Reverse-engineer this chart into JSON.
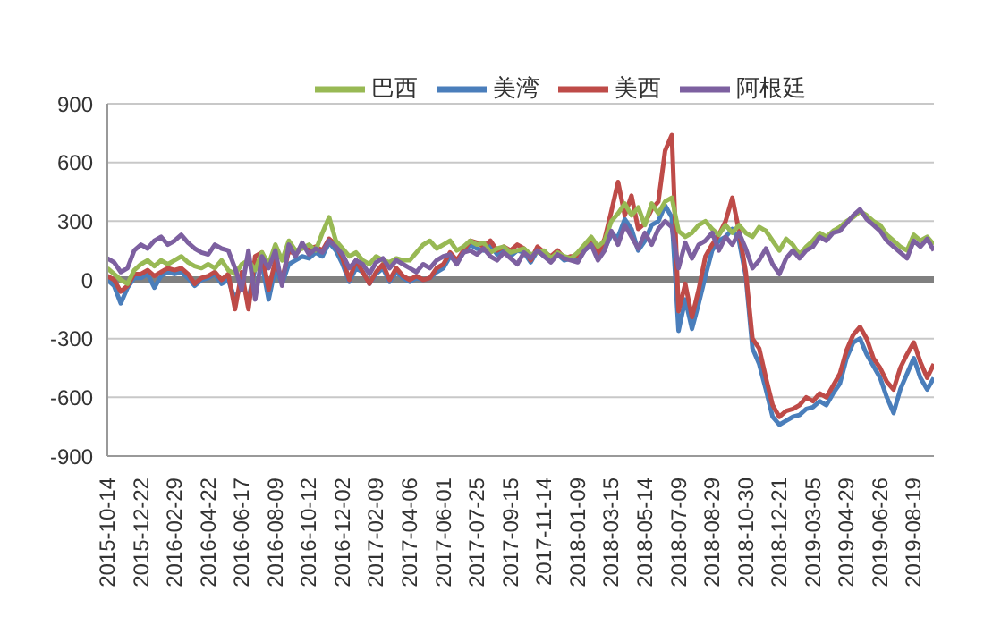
{
  "chart_data": {
    "type": "line",
    "categories": [
      "2015-10-14",
      null,
      null,
      null,
      null,
      "2015-12-22",
      null,
      null,
      null,
      null,
      "2016-02-29",
      null,
      null,
      null,
      null,
      "2016-04-22",
      null,
      null,
      null,
      null,
      "2016-06-17",
      null,
      null,
      null,
      null,
      "2016-08-09",
      null,
      null,
      null,
      null,
      "2016-10-12",
      null,
      null,
      null,
      null,
      "2016-12-02",
      null,
      null,
      null,
      null,
      "2017-02-09",
      null,
      null,
      null,
      null,
      "2017-04-06",
      null,
      null,
      null,
      null,
      "2017-06-01",
      null,
      null,
      null,
      null,
      "2017-07-25",
      null,
      null,
      null,
      null,
      "2017-09-15",
      null,
      null,
      null,
      null,
      "2017-11-14",
      null,
      null,
      null,
      null,
      "2018-01-09",
      null,
      null,
      null,
      null,
      "2018-03-15",
      null,
      null,
      null,
      null,
      "2018-05-14",
      null,
      null,
      null,
      null,
      "2018-07-09",
      null,
      null,
      null,
      null,
      "2018-08-29",
      null,
      null,
      null,
      null,
      "2018-10-30",
      null,
      null,
      null,
      null,
      "2018-12-21",
      null,
      null,
      null,
      null,
      "2019-03-05",
      null,
      null,
      null,
      null,
      "2019-04-29",
      null,
      null,
      null,
      null,
      "2019-06-26",
      null,
      null,
      null,
      null,
      "2019-08-19",
      null,
      null,
      null
    ],
    "series": [
      {
        "name": "美湾",
        "color": "#4a7ebb",
        "values": [
          0,
          -30,
          -120,
          -40,
          10,
          10,
          30,
          -40,
          20,
          40,
          30,
          40,
          10,
          -30,
          0,
          10,
          30,
          -20,
          0,
          -100,
          -20,
          -100,
          60,
          80,
          -100,
          60,
          -20,
          80,
          100,
          120,
          110,
          140,
          120,
          190,
          150,
          80,
          -10,
          60,
          40,
          -20,
          30,
          60,
          -10,
          40,
          10,
          -10,
          10,
          0,
          10,
          40,
          60,
          120,
          90,
          140,
          180,
          160,
          150,
          180,
          130,
          150,
          120,
          150,
          140,
          90,
          150,
          120,
          100,
          130,
          100,
          110,
          100,
          150,
          180,
          120,
          160,
          230,
          220,
          310,
          260,
          150,
          200,
          280,
          300,
          380,
          320,
          -260,
          -100,
          -250,
          -120,
          20,
          150,
          200,
          220,
          260,
          200,
          20,
          -350,
          -430,
          -560,
          -700,
          -740,
          -720,
          -700,
          -690,
          -660,
          -650,
          -620,
          -640,
          -580,
          -530,
          -400,
          -320,
          -300,
          -380,
          -440,
          -500,
          -600,
          -680,
          -560,
          -480,
          -400,
          -500,
          -560,
          -500
        ]
      },
      {
        "name": "美西",
        "color": "#be4b48",
        "values": [
          20,
          0,
          -60,
          -30,
          30,
          30,
          50,
          20,
          40,
          60,
          50,
          60,
          30,
          -20,
          10,
          20,
          40,
          0,
          30,
          -150,
          40,
          -150,
          120,
          140,
          -50,
          100,
          0,
          150,
          130,
          170,
          160,
          170,
          150,
          210,
          180,
          110,
          0,
          100,
          40,
          -20,
          40,
          80,
          0,
          60,
          20,
          0,
          20,
          0,
          10,
          60,
          80,
          140,
          100,
          150,
          200,
          190,
          170,
          200,
          150,
          170,
          150,
          180,
          160,
          100,
          170,
          140,
          120,
          150,
          110,
          120,
          120,
          170,
          200,
          130,
          210,
          350,
          500,
          330,
          430,
          260,
          290,
          360,
          400,
          660,
          740,
          -160,
          -20,
          -190,
          -50,
          120,
          180,
          230,
          300,
          420,
          250,
          40,
          -300,
          -350,
          -500,
          -640,
          -700,
          -670,
          -660,
          -640,
          -600,
          -620,
          -580,
          -600,
          -540,
          -480,
          -360,
          -280,
          -240,
          -300,
          -400,
          -450,
          -520,
          -560,
          -450,
          -380,
          -320,
          -420,
          -500,
          -430
        ]
      },
      {
        "name": "巴西",
        "color": "#98b954",
        "values": [
          60,
          30,
          0,
          -20,
          50,
          80,
          100,
          70,
          100,
          80,
          100,
          120,
          90,
          70,
          60,
          80,
          60,
          100,
          50,
          30,
          80,
          100,
          50,
          140,
          80,
          180,
          100,
          200,
          150,
          160,
          180,
          150,
          240,
          320,
          200,
          160,
          120,
          140,
          100,
          80,
          120,
          100,
          90,
          110,
          100,
          100,
          140,
          180,
          200,
          160,
          180,
          200,
          150,
          170,
          200,
          180,
          190,
          140,
          160,
          170,
          140,
          150,
          160,
          130,
          140,
          150,
          110,
          140,
          120,
          110,
          140,
          180,
          220,
          170,
          200,
          300,
          340,
          390,
          330,
          370,
          280,
          390,
          340,
          400,
          420,
          250,
          220,
          240,
          280,
          300,
          260,
          230,
          280,
          240,
          280,
          240,
          220,
          270,
          250,
          200,
          150,
          210,
          180,
          130,
          170,
          200,
          240,
          220,
          250,
          270,
          300,
          320,
          350,
          330,
          300,
          280,
          230,
          200,
          170,
          150,
          230,
          200,
          220,
          180
        ]
      },
      {
        "name": "阿根廷",
        "color": "#7d60a0",
        "values": [
          110,
          90,
          40,
          60,
          150,
          180,
          160,
          200,
          220,
          180,
          200,
          230,
          190,
          160,
          140,
          130,
          180,
          160,
          150,
          60,
          -50,
          150,
          -100,
          120,
          60,
          150,
          -30,
          180,
          120,
          190,
          130,
          160,
          140,
          200,
          170,
          130,
          60,
          100,
          80,
          30,
          90,
          110,
          60,
          100,
          80,
          60,
          40,
          80,
          60,
          100,
          120,
          130,
          80,
          140,
          150,
          130,
          160,
          120,
          100,
          140,
          110,
          80,
          140,
          110,
          150,
          120,
          90,
          130,
          110,
          100,
          90,
          150,
          180,
          100,
          150,
          250,
          180,
          280,
          220,
          160,
          240,
          180,
          260,
          300,
          270,
          60,
          190,
          110,
          180,
          200,
          240,
          150,
          220,
          180,
          240,
          160,
          60,
          100,
          160,
          80,
          30,
          110,
          150,
          110,
          150,
          170,
          220,
          200,
          240,
          250,
          290,
          330,
          360,
          310,
          280,
          250,
          200,
          170,
          140,
          110,
          200,
          170,
          210,
          150
        ]
      }
    ],
    "ylim": [
      -900,
      900
    ],
    "yticks": [
      -900,
      -600,
      -300,
      0,
      300,
      600,
      900
    ],
    "grid": "y",
    "legend": "top",
    "marker": "none",
    "line_style": "solid",
    "ref_lines": [
      {
        "axis": "y",
        "value": 0,
        "color": "#808080"
      }
    ]
  }
}
